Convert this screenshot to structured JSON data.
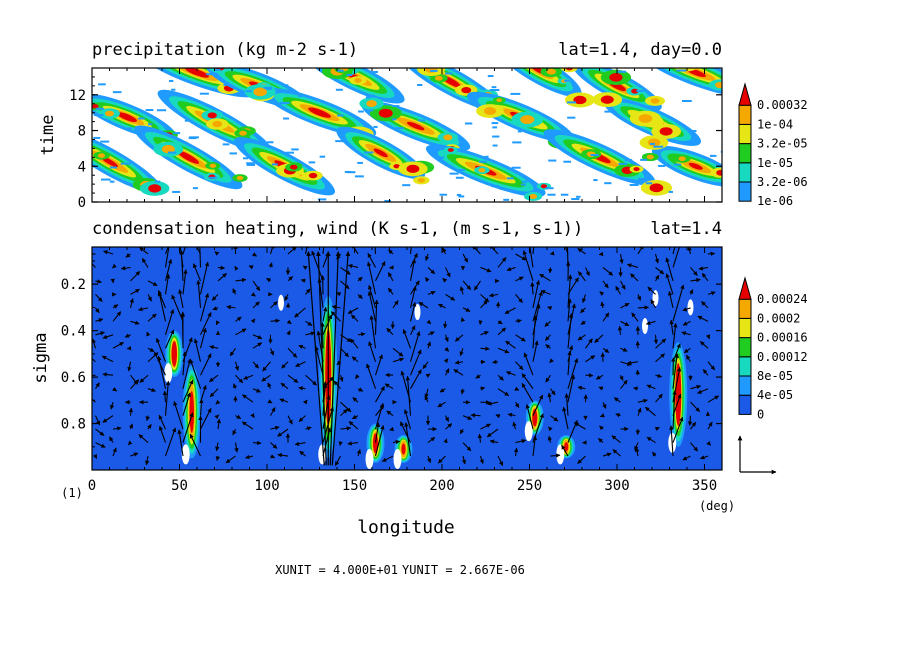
{
  "chart_data": [
    {
      "type": "heatmap",
      "title": "precipitation (kg m-2 s-1)",
      "subtitle": "lat=1.4, day=0.0",
      "ylabel": "time",
      "xlim": [
        0,
        360
      ],
      "ylim": [
        0,
        15
      ],
      "y_ticks": [
        0,
        4,
        8,
        12
      ],
      "colorbar": {
        "labels": [
          "1e-06",
          "3.2e-06",
          "1e-05",
          "3.2e-05",
          "1e-04",
          "0.00032"
        ],
        "colors": [
          "#ffffff",
          "#1f9bff",
          "#17d9c0",
          "#1fcc1f",
          "#e6e617",
          "#f5a800",
          "#e60000"
        ]
      },
      "rain_streaks": [
        {
          "lon": 60,
          "t": 14.5,
          "peak": 1.0
        },
        {
          "lon": 95,
          "t": 13.0,
          "peak": 0.9
        },
        {
          "lon": 150,
          "t": 14.0,
          "peak": 0.8
        },
        {
          "lon": 205,
          "t": 13.5,
          "peak": 1.0
        },
        {
          "lon": 255,
          "t": 14.8,
          "peak": 0.8
        },
        {
          "lon": 300,
          "t": 13.0,
          "peak": 1.0
        },
        {
          "lon": 345,
          "t": 14.5,
          "peak": 0.9
        },
        {
          "lon": 20,
          "t": 9.5,
          "peak": 1.0
        },
        {
          "lon": 70,
          "t": 9.0,
          "peak": 0.9
        },
        {
          "lon": 130,
          "t": 10.0,
          "peak": 1.0
        },
        {
          "lon": 185,
          "t": 8.5,
          "peak": 0.8
        },
        {
          "lon": 245,
          "t": 9.5,
          "peak": 1.0
        },
        {
          "lon": 320,
          "t": 9.0,
          "peak": 0.9
        },
        {
          "lon": 10,
          "t": 4.5,
          "peak": 0.8
        },
        {
          "lon": 55,
          "t": 5.0,
          "peak": 1.0
        },
        {
          "lon": 110,
          "t": 4.0,
          "peak": 1.0
        },
        {
          "lon": 165,
          "t": 5.5,
          "peak": 0.8
        },
        {
          "lon": 225,
          "t": 3.5,
          "peak": 0.9
        },
        {
          "lon": 290,
          "t": 5.0,
          "peak": 1.0
        },
        {
          "lon": 345,
          "t": 4.0,
          "peak": 0.8
        }
      ]
    },
    {
      "type": "heatmap",
      "title": "condensation heating, wind (K s-1, (m s-1, s-1))",
      "subtitle": "lat=1.4",
      "xlabel": "longitude",
      "ylabel": "sigma",
      "xlim": [
        0,
        360
      ],
      "ylim": [
        1.0,
        0.04
      ],
      "x_ticks": [
        0,
        50,
        100,
        150,
        200,
        250,
        300,
        350
      ],
      "y_ticks": [
        0.2,
        0.4,
        0.6,
        0.8
      ],
      "x_unit": "(deg)",
      "y_unit": "(1)",
      "colorbar": {
        "labels": [
          "0",
          "4e-05",
          "8e-05",
          "0.00012",
          "0.00016",
          "0.0002",
          "0.00024"
        ],
        "colors": [
          "#ffffff",
          "#1a5ae6",
          "#1f9bff",
          "#17d9c0",
          "#1fcc1f",
          "#e6e617",
          "#f5a800",
          "#e60000"
        ]
      },
      "heating_plumes": [
        {
          "lon": 135,
          "sigma_top": 0.25,
          "sigma_bottom": 0.95,
          "peak": 1.0
        },
        {
          "lon": 47,
          "sigma_top": 0.4,
          "sigma_bottom": 0.6,
          "peak": 0.9
        },
        {
          "lon": 57,
          "sigma_top": 0.55,
          "sigma_bottom": 0.95,
          "peak": 0.7
        },
        {
          "lon": 162,
          "sigma_top": 0.8,
          "sigma_bottom": 0.97,
          "peak": 0.8
        },
        {
          "lon": 178,
          "sigma_top": 0.85,
          "sigma_bottom": 0.97,
          "peak": 0.6
        },
        {
          "lon": 253,
          "sigma_top": 0.7,
          "sigma_bottom": 0.85,
          "peak": 0.8
        },
        {
          "lon": 271,
          "sigma_top": 0.85,
          "sigma_bottom": 0.95,
          "peak": 0.6
        },
        {
          "lon": 335,
          "sigma_top": 0.45,
          "sigma_bottom": 0.9,
          "peak": 1.0
        }
      ],
      "vector_scale": {
        "x": "XUNIT = 4.000E+01",
        "y": "YUNIT = 2.667E-06"
      }
    }
  ]
}
